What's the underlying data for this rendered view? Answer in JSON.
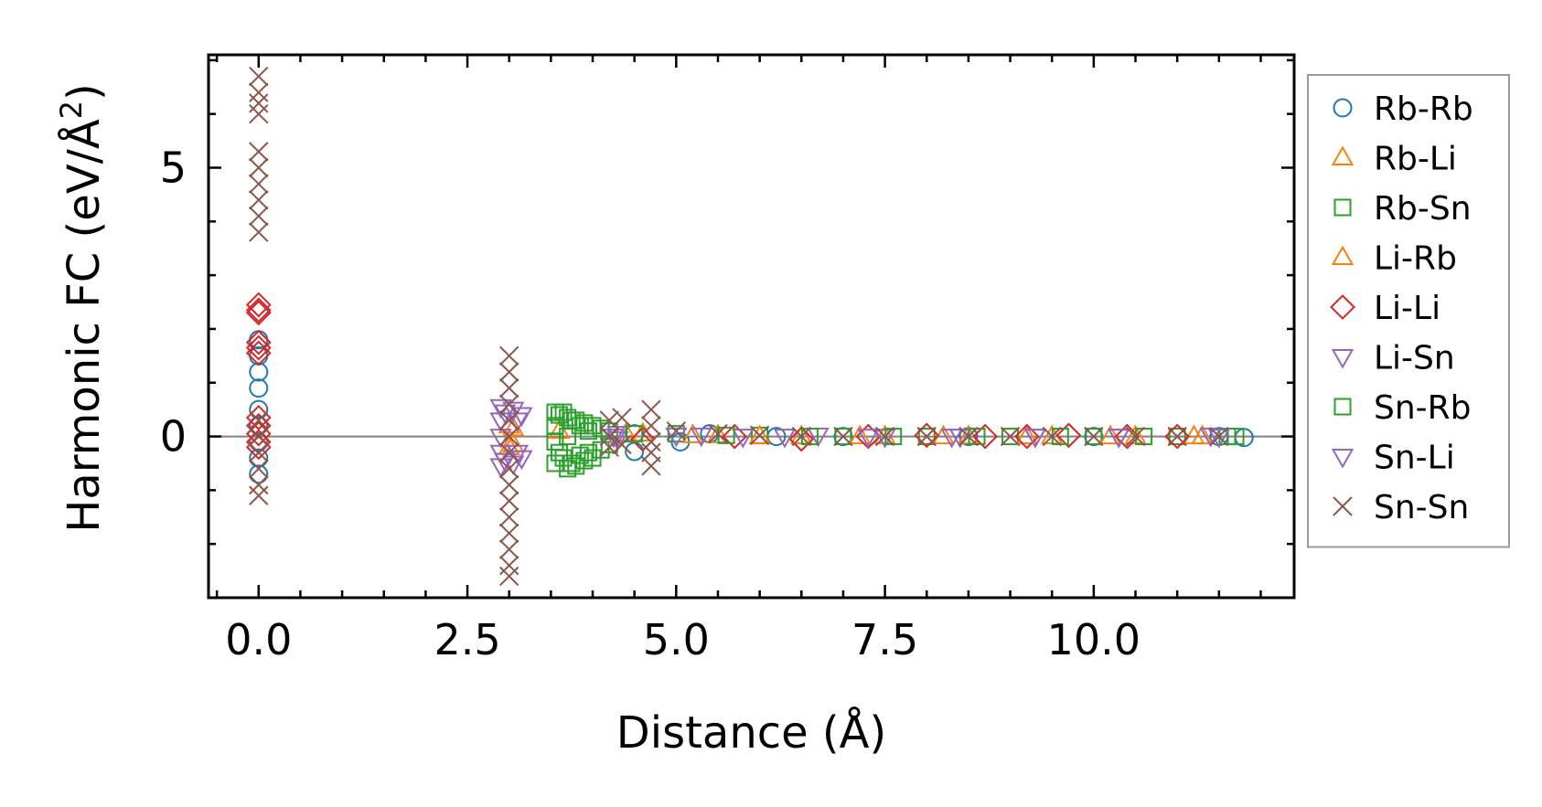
{
  "chart_data": {
    "type": "scatter",
    "xlabel": "Distance (Å)",
    "ylabel_prefix": "Harmonic FC (eV/Å",
    "ylabel_sup": "2",
    "ylabel_suffix": ")",
    "xlim": [
      -0.6,
      12.4
    ],
    "ylim": [
      -3.0,
      7.1
    ],
    "xticks": [
      0.0,
      2.5,
      5.0,
      7.5,
      10.0
    ],
    "xtick_labels": [
      "0.0",
      "2.5",
      "5.0",
      "7.5",
      "10.0"
    ],
    "xtick_minor_step": 0.5,
    "yticks": [
      0,
      5
    ],
    "ytick_labels": [
      "0",
      "5"
    ],
    "ytick_minor_step": 1,
    "zero_line": true,
    "legend_position": "right outside",
    "series": [
      {
        "name": "Rb-Rb",
        "marker": "circle",
        "color": "#1f77b4",
        "points": [
          [
            0,
            1.8
          ],
          [
            0,
            1.5
          ],
          [
            0,
            1.2
          ],
          [
            0,
            0.9
          ],
          [
            0,
            0.5
          ],
          [
            0,
            0.2
          ],
          [
            0,
            -0.1
          ],
          [
            0,
            -0.4
          ],
          [
            0,
            -0.7
          ],
          [
            4.5,
            -0.28
          ],
          [
            4.5,
            0.05
          ],
          [
            5.05,
            -0.1
          ],
          [
            5.4,
            0.05
          ],
          [
            6.2,
            0.0
          ],
          [
            7.0,
            0.0
          ],
          [
            8.5,
            0.0
          ],
          [
            10.0,
            0.0
          ],
          [
            11.5,
            0.0
          ],
          [
            11.8,
            -0.02
          ]
        ]
      },
      {
        "name": "Rb-Li",
        "marker": "triangle-up",
        "color": "#ff7f0e",
        "points": [
          [
            3.0,
            0.2
          ],
          [
            3.0,
            -0.2
          ],
          [
            3.6,
            0.1
          ],
          [
            4.6,
            0.05
          ],
          [
            5.5,
            0.02
          ],
          [
            6.5,
            0.0
          ],
          [
            7.5,
            0.0
          ],
          [
            8.5,
            0.0
          ],
          [
            9.5,
            0.0
          ],
          [
            10.5,
            0.0
          ],
          [
            11.3,
            0.0
          ]
        ]
      },
      {
        "name": "Rb-Sn",
        "marker": "square",
        "color": "#2ca02c",
        "points": [
          [
            3.55,
            0.45
          ],
          [
            3.55,
            0.2
          ],
          [
            3.55,
            -0.1
          ],
          [
            3.55,
            -0.5
          ],
          [
            3.6,
            0.4
          ],
          [
            3.6,
            -0.3
          ],
          [
            3.7,
            0.35
          ],
          [
            3.7,
            0.0
          ],
          [
            3.7,
            -0.6
          ],
          [
            3.8,
            0.3
          ],
          [
            3.8,
            -0.55
          ],
          [
            3.9,
            0.25
          ],
          [
            3.9,
            -0.45
          ],
          [
            4.0,
            0.2
          ],
          [
            4.0,
            -0.4
          ],
          [
            4.1,
            0.15
          ],
          [
            4.1,
            -0.25
          ],
          [
            4.2,
            0.1
          ],
          [
            4.2,
            -0.15
          ],
          [
            5.0,
            0.05
          ],
          [
            6.0,
            0.02
          ],
          [
            7.0,
            0.0
          ],
          [
            8.0,
            0.0
          ],
          [
            9.0,
            0.0
          ],
          [
            10.0,
            0.0
          ],
          [
            11.0,
            0.0
          ],
          [
            11.7,
            0.0
          ]
        ]
      },
      {
        "name": "Li-Rb",
        "marker": "triangle-up",
        "color": "#ff7f0e",
        "points": [
          [
            3.05,
            0.15
          ],
          [
            3.05,
            -0.15
          ],
          [
            4.4,
            0.05
          ],
          [
            5.2,
            0.02
          ],
          [
            6.0,
            0.0
          ],
          [
            7.2,
            0.0
          ],
          [
            8.2,
            0.0
          ],
          [
            9.2,
            0.0
          ],
          [
            10.2,
            0.0
          ],
          [
            11.2,
            0.0
          ]
        ]
      },
      {
        "name": "Li-Li",
        "marker": "diamond",
        "color": "#d62728",
        "points": [
          [
            0,
            2.45
          ],
          [
            0,
            2.35
          ],
          [
            0,
            2.3
          ],
          [
            0,
            1.75
          ],
          [
            0,
            1.65
          ],
          [
            0,
            1.55
          ],
          [
            0,
            0.35
          ],
          [
            0,
            0.2
          ],
          [
            0,
            0.05
          ],
          [
            0,
            -0.1
          ],
          [
            0,
            -0.2
          ],
          [
            4.6,
            -0.05
          ],
          [
            5.7,
            0.0
          ],
          [
            6.5,
            -0.05
          ],
          [
            7.3,
            0.0
          ],
          [
            8.0,
            0.02
          ],
          [
            8.7,
            0.0
          ],
          [
            9.2,
            0.0
          ],
          [
            9.7,
            0.02
          ],
          [
            10.4,
            0.0
          ],
          [
            11.0,
            0.0
          ]
        ]
      },
      {
        "name": "Li-Sn",
        "marker": "triangle-down",
        "color": "#9467bd",
        "points": [
          [
            2.9,
            0.55
          ],
          [
            2.9,
            0.3
          ],
          [
            2.9,
            0.0
          ],
          [
            2.9,
            -0.3
          ],
          [
            2.9,
            -0.55
          ],
          [
            3.05,
            0.5
          ],
          [
            3.05,
            -0.5
          ],
          [
            3.15,
            0.4
          ],
          [
            3.15,
            -0.4
          ],
          [
            4.3,
            0.05
          ],
          [
            4.3,
            -0.05
          ],
          [
            5.0,
            0.02
          ],
          [
            5.8,
            0.0
          ],
          [
            6.7,
            0.02
          ],
          [
            7.5,
            0.0
          ],
          [
            8.4,
            0.0
          ],
          [
            9.3,
            0.0
          ],
          [
            10.3,
            0.0
          ],
          [
            11.4,
            0.02
          ]
        ]
      },
      {
        "name": "Sn-Rb",
        "marker": "square",
        "color": "#2ca02c",
        "points": [
          [
            3.65,
            0.45
          ],
          [
            3.65,
            -0.4
          ],
          [
            3.75,
            0.3
          ],
          [
            3.75,
            -0.5
          ],
          [
            3.85,
            0.2
          ],
          [
            3.85,
            -0.35
          ],
          [
            3.95,
            0.1
          ],
          [
            3.95,
            -0.3
          ],
          [
            4.5,
            0.05
          ],
          [
            5.6,
            0.02
          ],
          [
            6.6,
            0.0
          ],
          [
            7.6,
            0.0
          ],
          [
            8.6,
            0.0
          ],
          [
            9.6,
            0.0
          ],
          [
            10.6,
            0.0
          ],
          [
            11.6,
            0.0
          ]
        ]
      },
      {
        "name": "Sn-Li",
        "marker": "triangle-down",
        "color": "#9467bd",
        "points": [
          [
            2.95,
            0.45
          ],
          [
            2.95,
            -0.45
          ],
          [
            3.1,
            0.3
          ],
          [
            3.1,
            -0.3
          ],
          [
            4.25,
            0.0
          ],
          [
            5.3,
            0.02
          ],
          [
            6.3,
            0.0
          ],
          [
            7.3,
            0.0
          ],
          [
            8.3,
            0.0
          ],
          [
            9.3,
            0.0
          ],
          [
            10.3,
            0.0
          ],
          [
            11.5,
            0.0
          ]
        ]
      },
      {
        "name": "Sn-Sn",
        "marker": "x",
        "color": "#8c564b",
        "points": [
          [
            0,
            6.7
          ],
          [
            0,
            6.4
          ],
          [
            0,
            6.2
          ],
          [
            0,
            6.0
          ],
          [
            0,
            5.3
          ],
          [
            0,
            5.0
          ],
          [
            0,
            4.7
          ],
          [
            0,
            4.4
          ],
          [
            0,
            4.1
          ],
          [
            0,
            3.8
          ],
          [
            0,
            0.3
          ],
          [
            0,
            0.0
          ],
          [
            0,
            -0.3
          ],
          [
            0,
            -0.6
          ],
          [
            0,
            -0.9
          ],
          [
            0,
            -1.1
          ],
          [
            3.0,
            1.5
          ],
          [
            3.0,
            1.2
          ],
          [
            3.0,
            0.9
          ],
          [
            3.0,
            0.6
          ],
          [
            3.0,
            0.3
          ],
          [
            3.0,
            0.0
          ],
          [
            3.0,
            -0.3
          ],
          [
            3.0,
            -0.6
          ],
          [
            3.0,
            -0.9
          ],
          [
            3.0,
            -1.2
          ],
          [
            3.0,
            -1.5
          ],
          [
            3.0,
            -1.8
          ],
          [
            3.0,
            -2.1
          ],
          [
            3.0,
            -2.4
          ],
          [
            3.0,
            -2.6
          ],
          [
            4.2,
            0.3
          ],
          [
            4.2,
            0.0
          ],
          [
            4.2,
            -0.2
          ],
          [
            4.35,
            0.35
          ],
          [
            4.35,
            -0.15
          ],
          [
            4.7,
            0.5
          ],
          [
            4.7,
            0.2
          ],
          [
            4.7,
            -0.1
          ],
          [
            4.7,
            -0.3
          ],
          [
            4.7,
            -0.55
          ],
          [
            5.0,
            0.1
          ],
          [
            5.5,
            0.05
          ],
          [
            6.0,
            0.02
          ],
          [
            6.5,
            0.0
          ],
          [
            7.0,
            0.0
          ],
          [
            7.5,
            0.0
          ],
          [
            8.0,
            0.0
          ],
          [
            8.5,
            0.0
          ],
          [
            9.0,
            0.0
          ],
          [
            9.5,
            0.0
          ],
          [
            10.0,
            0.0
          ],
          [
            10.5,
            0.0
          ],
          [
            11.0,
            0.0
          ],
          [
            11.5,
            0.0
          ]
        ]
      }
    ]
  }
}
